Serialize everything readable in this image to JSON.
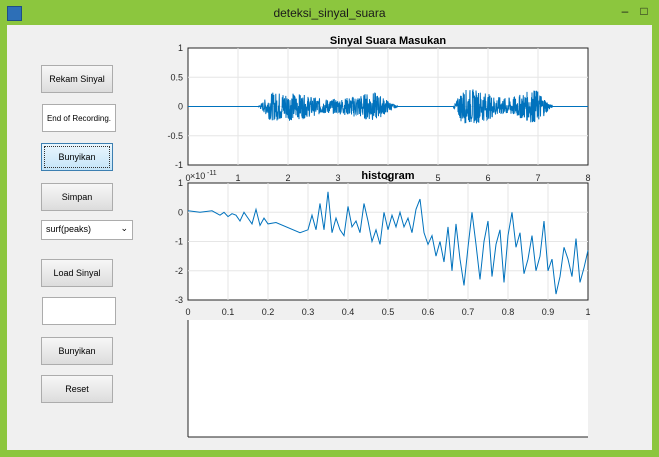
{
  "window": {
    "title": "deteksi_sinyal_suara",
    "minimize_glyph": "‒",
    "maximize_glyph": "□",
    "app_icon": "matlab-figure-icon"
  },
  "controls": {
    "rekam_label": "Rekam Sinyal",
    "status_text": "End of Recording.",
    "bunyikan1_label": "Bunyikan",
    "simpan_label": "Simpan",
    "plot_select_value": "surf(peaks)",
    "load_label": "Load Sinyal",
    "input_value": "",
    "bunyikan2_label": "Bunyikan",
    "reset_label": "Reset"
  },
  "chart_data": [
    {
      "type": "line",
      "title": "Sinyal Suara Masukan",
      "xlim": [
        0,
        8
      ],
      "ylim": [
        -1,
        1
      ],
      "xticks": [
        "0",
        "1",
        "2",
        "3",
        "4",
        "5",
        "6",
        "7",
        "8"
      ],
      "yticks": [
        "1",
        "0.5",
        "0",
        "-0.5",
        "-1"
      ],
      "grid": true,
      "color": "#0072bd",
      "bursts": [
        {
          "start": 1.4,
          "end": 4.2,
          "amplitude": 0.25
        },
        {
          "start": 5.3,
          "end": 7.3,
          "amplitude": 0.3
        }
      ]
    },
    {
      "type": "line",
      "title": "histogram",
      "exponent_label": "×10",
      "exponent_power": "-11",
      "xlim": [
        0,
        1
      ],
      "ylim": [
        -3,
        1
      ],
      "xticks": [
        "0",
        "0.1",
        "0.2",
        "0.3",
        "0.4",
        "0.5",
        "0.6",
        "0.7",
        "0.8",
        "0.9",
        "1"
      ],
      "yticks": [
        "1",
        "0",
        "-1",
        "-2",
        "-3"
      ],
      "grid": true,
      "color": "#0072bd",
      "x": [
        0,
        0.03,
        0.06,
        0.08,
        0.09,
        0.1,
        0.11,
        0.12,
        0.13,
        0.14,
        0.15,
        0.16,
        0.17,
        0.18,
        0.19,
        0.2,
        0.22,
        0.28,
        0.3,
        0.31,
        0.32,
        0.33,
        0.34,
        0.35,
        0.36,
        0.37,
        0.38,
        0.39,
        0.4,
        0.41,
        0.42,
        0.43,
        0.44,
        0.45,
        0.46,
        0.47,
        0.48,
        0.49,
        0.5,
        0.51,
        0.52,
        0.53,
        0.54,
        0.55,
        0.56,
        0.57,
        0.58,
        0.59,
        0.6,
        0.61,
        0.62,
        0.63,
        0.64,
        0.65,
        0.66,
        0.67,
        0.68,
        0.69,
        0.7,
        0.71,
        0.72,
        0.73,
        0.74,
        0.75,
        0.76,
        0.77,
        0.78,
        0.79,
        0.8,
        0.81,
        0.82,
        0.83,
        0.84,
        0.85,
        0.86,
        0.87,
        0.88,
        0.89,
        0.9,
        0.91,
        0.92,
        0.93,
        0.94,
        0.95,
        0.96,
        0.97,
        0.98,
        0.99,
        1.0
      ],
      "y": [
        0.05,
        0.0,
        0.05,
        -0.1,
        0.0,
        -0.15,
        -0.05,
        -0.1,
        -0.3,
        0.0,
        -0.2,
        -0.4,
        0.1,
        -0.45,
        -0.2,
        -0.4,
        -0.35,
        -0.7,
        -0.6,
        -0.1,
        -0.6,
        0.3,
        -0.6,
        0.7,
        -0.7,
        -0.2,
        -0.6,
        -0.8,
        0.2,
        -0.5,
        -0.3,
        -0.7,
        0.3,
        -0.3,
        -1.0,
        -0.6,
        -1.1,
        0.0,
        -0.6,
        -0.1,
        -0.5,
        0.0,
        -0.5,
        -0.2,
        -0.7,
        0.1,
        0.45,
        -0.7,
        -1.1,
        -0.8,
        -1.5,
        -1.0,
        -1.7,
        -0.5,
        -2.0,
        -0.4,
        -1.6,
        -2.5,
        -1.2,
        0.0,
        -1.1,
        -2.3,
        -1.0,
        -0.3,
        -2.2,
        -1.1,
        -0.6,
        -2.4,
        -0.8,
        0.0,
        -1.2,
        -0.7,
        -2.1,
        -1.6,
        -0.8,
        -2.0,
        -1.5,
        -0.3,
        -2.0,
        -1.6,
        -2.8,
        -2.2,
        -1.2,
        -1.6,
        -2.2,
        -0.9,
        -2.4,
        -1.9,
        -1.3
      ]
    }
  ]
}
